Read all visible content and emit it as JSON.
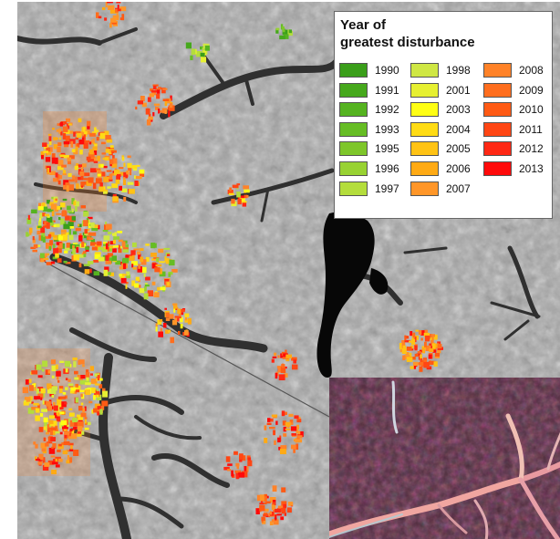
{
  "legend": {
    "title_line1": "Year of",
    "title_line2": "greatest disturbance",
    "items": [
      {
        "year": "1990",
        "color": "#3a9e1a"
      },
      {
        "year": "1991",
        "color": "#46a81c"
      },
      {
        "year": "1992",
        "color": "#55b320"
      },
      {
        "year": "1993",
        "color": "#66bd24"
      },
      {
        "year": "1995",
        "color": "#7ec62a"
      },
      {
        "year": "1996",
        "color": "#98d232"
      },
      {
        "year": "1997",
        "color": "#b4dd3c"
      },
      {
        "year": "1998",
        "color": "#cfe744"
      },
      {
        "year": "2001",
        "color": "#e6f032"
      },
      {
        "year": "2003",
        "color": "#ffff14"
      },
      {
        "year": "2004",
        "color": "#ffdc14"
      },
      {
        "year": "2005",
        "color": "#ffc314"
      },
      {
        "year": "2006",
        "color": "#ffaa14"
      },
      {
        "year": "2007",
        "color": "#ff9628"
      },
      {
        "year": "2008",
        "color": "#ff8228"
      },
      {
        "year": "2009",
        "color": "#ff6e1e"
      },
      {
        "year": "2010",
        "color": "#ff5a14"
      },
      {
        "year": "2011",
        "color": "#ff4614"
      },
      {
        "year": "2012",
        "color": "#ff2814"
      },
      {
        "year": "2013",
        "color": "#ff0a0a"
      }
    ]
  }
}
